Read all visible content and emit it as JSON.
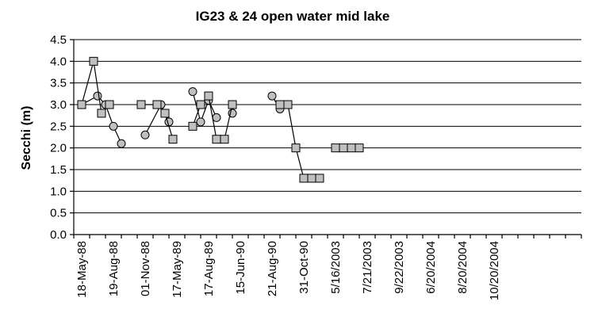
{
  "chart_data": {
    "type": "line",
    "title": "IG23 & 24 open water mid lake",
    "xlabel": "",
    "ylabel": "Secchi (m)",
    "ylim": [
      0,
      4.5
    ],
    "yticks": [
      "0.0",
      "0.5",
      "1.0",
      "1.5",
      "2.0",
      "2.5",
      "3.0",
      "3.5",
      "4.0",
      "4.5"
    ],
    "grid": "horizontal",
    "x_tick_labels": [
      "18-May-88",
      "19-Aug-88",
      "01-Nov-88",
      "17-May-89",
      "17-Aug-89",
      "15-Jun-90",
      "21-Aug-90",
      "31-Oct-90",
      "5/16/2003",
      "7/21/2003",
      "9/22/2003",
      "6/20/2004",
      "8/20/2004",
      "10/20/2004"
    ],
    "series": [
      {
        "marker": "circle",
        "segments": [
          {
            "x": [
              0,
              1.0,
              1.5,
              2.0,
              2.5
            ],
            "y": [
              3.0,
              3.2,
              3.0,
              2.5,
              2.1
            ]
          },
          {
            "x": [
              4.0,
              5.0,
              5.5
            ],
            "y": [
              2.3,
              3.0,
              2.6
            ]
          },
          {
            "x": [
              7.0,
              7.5,
              8.0,
              8.5
            ],
            "y": [
              3.3,
              2.6,
              3.1,
              2.7
            ]
          },
          {
            "x": [
              9.5
            ],
            "y": [
              2.8
            ]
          },
          {
            "x": [
              12.0,
              12.5,
              13.0
            ],
            "y": [
              3.2,
              2.9,
              3.0
            ]
          }
        ]
      },
      {
        "marker": "square",
        "segments": [
          {
            "x": [
              0,
              0.75,
              1.25,
              1.75
            ],
            "y": [
              3.0,
              4.0,
              2.8,
              3.0
            ]
          },
          {
            "x": [
              3.75,
              4.75,
              5.25,
              5.75
            ],
            "y": [
              3.0,
              3.0,
              2.8,
              2.2
            ]
          },
          {
            "x": [
              7.0,
              7.5,
              8.0,
              8.5,
              9.0,
              9.5
            ],
            "y": [
              2.5,
              3.0,
              3.2,
              2.2,
              2.2,
              3.0
            ]
          },
          {
            "x": [
              12.5,
              13.0,
              13.5,
              14.0,
              14.5,
              15.0
            ],
            "y": [
              3.0,
              3.0,
              2.0,
              1.3,
              1.3,
              1.3
            ]
          },
          {
            "x": [
              16.0,
              16.5,
              17.0,
              17.5
            ],
            "y": [
              2.0,
              2.0,
              2.0,
              2.0
            ]
          }
        ]
      }
    ]
  }
}
